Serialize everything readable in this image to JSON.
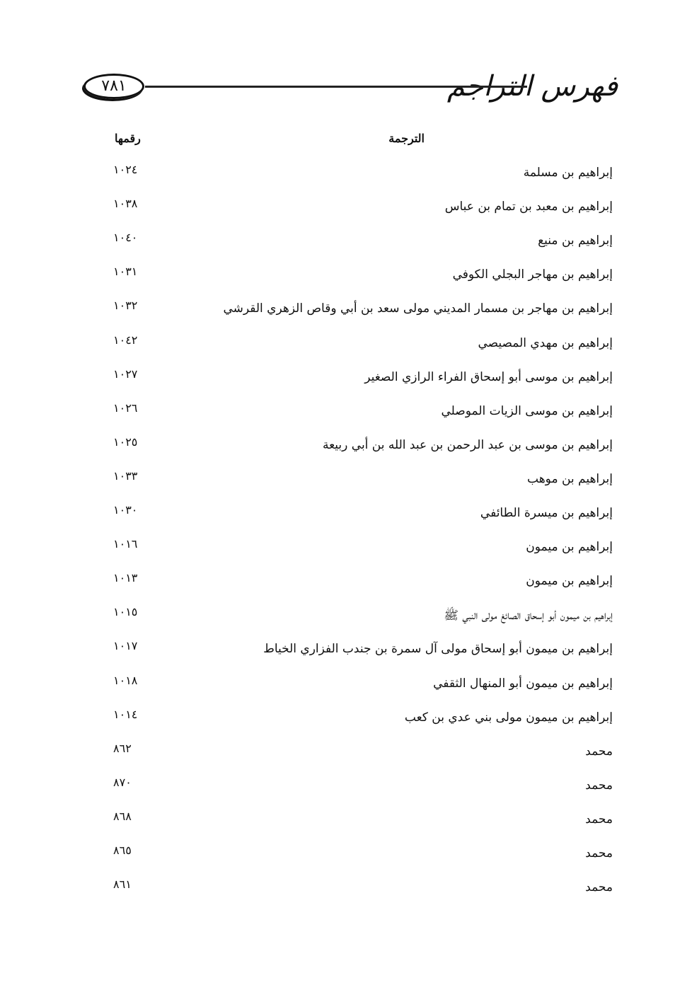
{
  "header": {
    "title": "فهرس التراجم",
    "page_number": "٧٨١"
  },
  "columns": {
    "name": "الترجمة",
    "number": "رقمها"
  },
  "rows": [
    {
      "name": "إبراهيم بن مسلمة",
      "number": "١٠٢٤"
    },
    {
      "name": "إبراهيم بن معبد بن تمام بن عباس",
      "number": "١٠٣٨"
    },
    {
      "name": "إبراهيم بن منيع",
      "number": "١٠٤٠"
    },
    {
      "name": "إبراهيم بن مهاجر البجلي الكوفي",
      "number": "١٠٣١"
    },
    {
      "name": "إبراهيم بن مهاجر بن مسمار المديني مولى سعد بن أبي وقاص الزهري القرشي",
      "number": "١٠٣٢"
    },
    {
      "name": "إبراهيم بن مهدي المصيصي",
      "number": "١٠٤٢"
    },
    {
      "name": "إبراهيم بن موسى أبو إسحاق الفراء الرازي الصغير",
      "number": "١٠٢٧"
    },
    {
      "name": "إبراهيم بن موسى الزيات الموصلي",
      "number": "١٠٢٦"
    },
    {
      "name": "إبراهيم بن موسى بن عبد الرحمن بن عبد الله بن أبي ربيعة",
      "number": "١٠٢٥"
    },
    {
      "name": "إبراهيم بن موهب",
      "number": "١٠٣٣"
    },
    {
      "name": "إبراهيم بن ميسرة الطائفي",
      "number": "١٠٣٠"
    },
    {
      "name": "إبراهيم بن ميمون",
      "number": "١٠١٦"
    },
    {
      "name": "إبراهيم بن ميمون",
      "number": "١٠١٣"
    },
    {
      "name": "إبراهيم بن ميمون أبو إسحاق الصائغ مولى النبي ﷺ",
      "number": "١٠١٥"
    },
    {
      "name": "إبراهيم بن ميمون أبو إسحاق مولى آل سمرة بن جندب الفزاري الخياط",
      "number": "١٠١٧"
    },
    {
      "name": "إبراهيم بن ميمون أبو المنهال الثقفي",
      "number": "١٠١٨"
    },
    {
      "name": "إبراهيم بن ميمون مولى بني عدي بن كعب",
      "number": "١٠١٤"
    },
    {
      "name": "محمد",
      "number": "٨٦٢"
    },
    {
      "name": "محمد",
      "number": "٨٧٠"
    },
    {
      "name": "محمد",
      "number": "٨٦٨"
    },
    {
      "name": "محمد",
      "number": "٨٦٥"
    },
    {
      "name": "محمد",
      "number": "٨٦١"
    }
  ]
}
